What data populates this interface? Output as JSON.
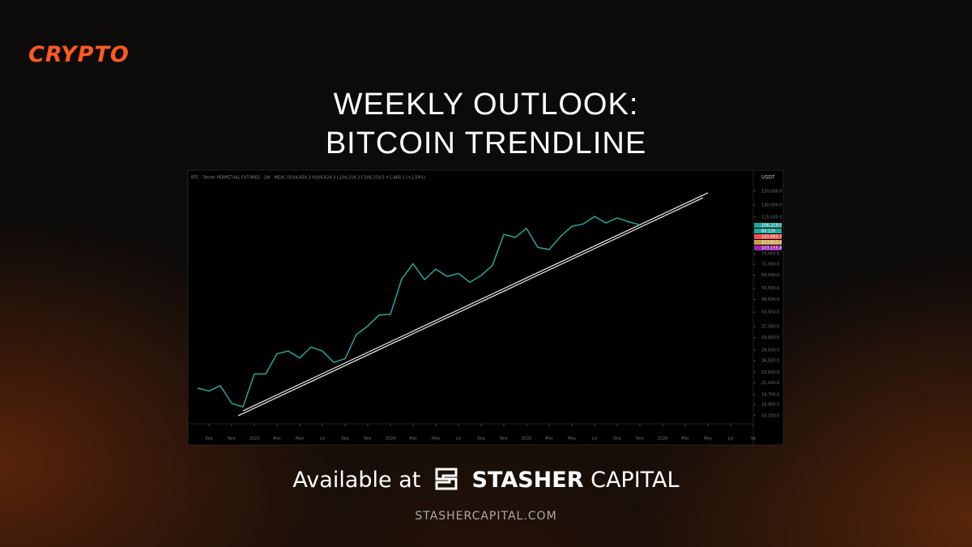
{
  "header": {
    "tag": "CRYPTO",
    "title": [
      "WEEKLY OUTLOOK:",
      "BITCOIN TRENDLINE"
    ]
  },
  "chart_data": {
    "type": "line",
    "info": "BTC · Tether PERPETUAL FUTURES · 1W · MEXC  O104,659.3 H106,624.3 L104,218.2 C106,319.5 +1,660.2 (+1.59%)",
    "currency": "USDT",
    "x": [
      "2022-08",
      "2022-09",
      "2022-10",
      "2022-11",
      "2022-12",
      "2023-01",
      "2023-02",
      "2023-03",
      "2023-04",
      "2023-05",
      "2023-06",
      "2023-07",
      "2023-08",
      "2023-09",
      "2023-10",
      "2023-11",
      "2023-12",
      "2024-01",
      "2024-02",
      "2024-03",
      "2024-04",
      "2024-05",
      "2024-06",
      "2024-07",
      "2024-08",
      "2024-09",
      "2024-10",
      "2024-11",
      "2024-12",
      "2025-01",
      "2025-02",
      "2025-03",
      "2025-04",
      "2025-05",
      "2025-06",
      "2025-07",
      "2025-08",
      "2025-09",
      "2025-10",
      "2025-11"
    ],
    "series": [
      {
        "name": "BTC",
        "color": "#26a69a",
        "values": [
          20000,
          19400,
          20500,
          17100,
          16500,
          23100,
          23100,
          28400,
          29200,
          27200,
          30400,
          29200,
          26000,
          27000,
          34600,
          37700,
          42200,
          42500,
          61100,
          71300,
          60600,
          67500,
          62700,
          64600,
          59000,
          63300,
          70200,
          96400,
          93400,
          102400,
          84300,
          82500,
          94200,
          104600,
          107100,
          115700,
          108200,
          114000,
          109500,
          106319.5
        ]
      }
    ],
    "log_scale": true,
    "ylim": [
      14700,
      160000
    ],
    "yticks": [
      {
        "value": 15100,
        "label": "15,100.0"
      },
      {
        "value": 16900,
        "label": "16,900.0"
      },
      {
        "value": 18700,
        "label": "18,700.0"
      },
      {
        "value": 21100,
        "label": "21,100.0"
      },
      {
        "value": 23500,
        "label": "23,500.0"
      },
      {
        "value": 26500,
        "label": "26,500.0"
      },
      {
        "value": 29500,
        "label": "29,500.0"
      },
      {
        "value": 33500,
        "label": "33,500.0"
      },
      {
        "value": 37500,
        "label": "37,500.0"
      },
      {
        "value": 43500,
        "label": "43,500.0"
      },
      {
        "value": 49500,
        "label": "49,500.0"
      },
      {
        "value": 55500,
        "label": "55,500.0"
      },
      {
        "value": 63500,
        "label": "63,500.0"
      },
      {
        "value": 71000,
        "label": "71,000.0"
      },
      {
        "value": 79000,
        "label": "79,000.0"
      },
      {
        "value": 115000,
        "label": "115,000.0"
      },
      {
        "value": 130000,
        "label": "130,000.0"
      },
      {
        "value": 150000,
        "label": "150,000.0"
      }
    ],
    "xticks": [
      {
        "value": "2022-09",
        "label": "Sep"
      },
      {
        "value": "2022-11",
        "label": "Nov"
      },
      {
        "value": "2023-01",
        "label": "2023"
      },
      {
        "value": "2023-03",
        "label": "Mar"
      },
      {
        "value": "2023-05",
        "label": "May"
      },
      {
        "value": "2023-07",
        "label": "Jul"
      },
      {
        "value": "2023-09",
        "label": "Sep"
      },
      {
        "value": "2023-11",
        "label": "Nov"
      },
      {
        "value": "2024-01",
        "label": "2024"
      },
      {
        "value": "2024-03",
        "label": "Mar"
      },
      {
        "value": "2024-05",
        "label": "May"
      },
      {
        "value": "2024-07",
        "label": "Jul"
      },
      {
        "value": "2024-09",
        "label": "Sep"
      },
      {
        "value": "2024-11",
        "label": "Nov"
      },
      {
        "value": "2025-01",
        "label": "2025"
      },
      {
        "value": "2025-03",
        "label": "Mar"
      },
      {
        "value": "2025-05",
        "label": "May"
      },
      {
        "value": "2025-07",
        "label": "Jul"
      },
      {
        "value": "2025-09",
        "label": "Sep"
      },
      {
        "value": "2025-11",
        "label": "Nov"
      },
      {
        "value": "2026-01",
        "label": "2026"
      },
      {
        "value": "2026-03",
        "label": "Mar"
      },
      {
        "value": "2026-05",
        "label": "May"
      },
      {
        "value": "2026-07",
        "label": "Jul"
      },
      {
        "value": "2026-09",
        "label": "Se"
      }
    ],
    "price_tags": [
      {
        "label": "106,319.5",
        "color": "#26a69a"
      },
      {
        "label": "6d 12h",
        "color": "#26a69a"
      },
      {
        "label": "103,983.7",
        "color": "#ef5350"
      },
      {
        "label": "103,623.4",
        "color": "#c9a14a"
      },
      {
        "label": "103,155.8",
        "color": "#9c27b0"
      }
    ]
  },
  "footer": {
    "available": "Available at",
    "brand": "STASHER",
    "brand2": "CAPITAL",
    "url": "STASHERCAPITAL.COM"
  }
}
